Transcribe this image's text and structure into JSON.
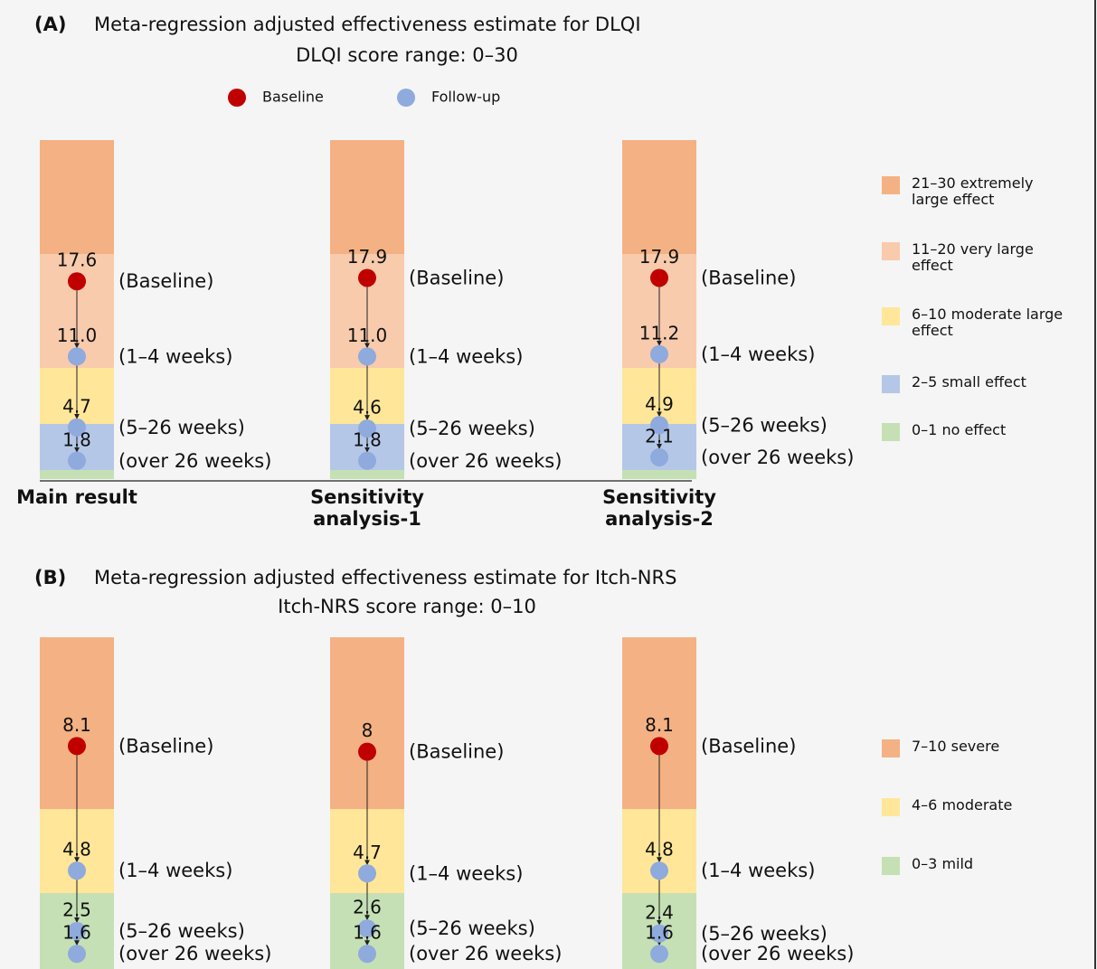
{
  "chart_data": [
    {
      "type": "effect-scale",
      "label": "(A)",
      "title": "Meta-regression adjusted effectiveness estimate for DLQI",
      "subtitle": "DLQI score range: 0–30",
      "legend": [
        {
          "name": "Baseline",
          "color": "#c00000"
        },
        {
          "name": "Follow-up",
          "color": "#8faadc"
        }
      ],
      "bands": [
        {
          "name": "21–30 extremely large effect",
          "color": "#f4b183",
          "range": [
            20,
            30
          ]
        },
        {
          "name": "11–20 very large effect",
          "color": "#f8cbad",
          "range": [
            10,
            20
          ]
        },
        {
          "name": "6–10 moderate large effect",
          "color": "#ffe699",
          "range": [
            5,
            10
          ]
        },
        {
          "name": "2–5 small effect",
          "color": "#b4c7e7",
          "range": [
            1,
            5
          ]
        },
        {
          "name": "0–1 no effect",
          "color": "#c5e0b4",
          "range": [
            0,
            1
          ]
        }
      ],
      "timepoints": [
        "(Baseline)",
        "(1–4 weeks)",
        "(5–26 weeks)",
        "(over 26 weeks)"
      ],
      "columns": [
        {
          "name": "Main result",
          "values": [
            17.6,
            11.0,
            4.7,
            1.8
          ],
          "value_labels": [
            "17.6",
            "11.0",
            "4.7",
            "1.8"
          ]
        },
        {
          "name": "Sensitivity analysis-1",
          "values": [
            17.9,
            11.0,
            4.6,
            1.8
          ],
          "value_labels": [
            "17.9",
            "11.0",
            "4.6",
            "1.8"
          ]
        },
        {
          "name": "Sensitivity analysis-2",
          "values": [
            17.9,
            11.2,
            4.9,
            2.1
          ],
          "value_labels": [
            "17.9",
            "11.2",
            "4.9",
            "2.1"
          ]
        }
      ]
    },
    {
      "type": "effect-scale",
      "label": "(B)",
      "title": "Meta-regression adjusted effectiveness estimate for Itch-NRS",
      "subtitle": "Itch-NRS score range: 0–10",
      "marker_colors": [
        "#c00000",
        "#8faadc"
      ],
      "bands": [
        {
          "name": "7–10 severe",
          "color": "#f4b183",
          "range": [
            7,
            10
          ]
        },
        {
          "name": "4–6 moderate",
          "color": "#ffe699",
          "range": [
            4,
            7
          ]
        },
        {
          "name": "0–3 mild",
          "color": "#c5e0b4",
          "range": [
            0,
            4
          ]
        }
      ],
      "timepoints": [
        "(Baseline)",
        "(1–4 weeks)",
        "(5–26 weeks)",
        "(over 26 weeks)"
      ],
      "columns": [
        {
          "values": [
            8.1,
            4.8,
            2.5,
            1.6
          ]
        },
        {
          "values": [
            8.0,
            4.7,
            2.6,
            1.6
          ]
        },
        {
          "values": [
            8.1,
            4.8,
            2.4,
            1.6
          ]
        }
      ]
    }
  ]
}
